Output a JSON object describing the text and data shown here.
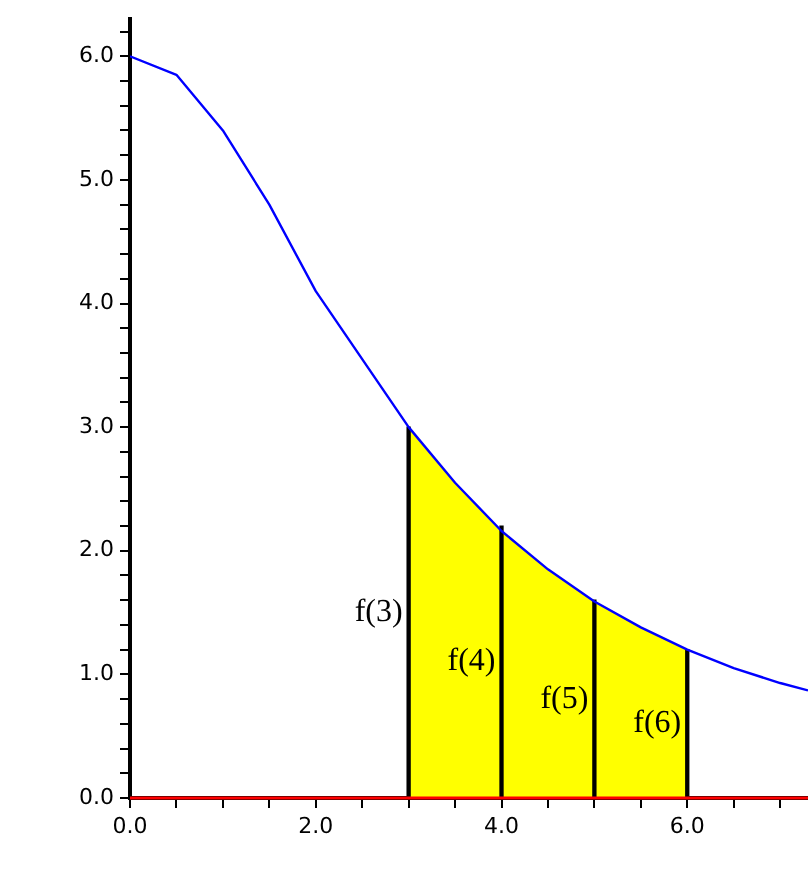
{
  "chart_data": {
    "type": "line",
    "grid": false,
    "legend": false,
    "marker": "none",
    "xlim": [
      0,
      7.3
    ],
    "ylim": [
      0,
      6.3
    ],
    "xticks": [
      {
        "value": 0,
        "label": "0.0"
      },
      {
        "value": 0.5,
        "label": null
      },
      {
        "value": 1,
        "label": null
      },
      {
        "value": 1.5,
        "label": null
      },
      {
        "value": 2,
        "label": "2.0"
      },
      {
        "value": 2.5,
        "label": null
      },
      {
        "value": 3,
        "label": null
      },
      {
        "value": 3.5,
        "label": null
      },
      {
        "value": 4,
        "label": "4.0"
      },
      {
        "value": 4.5,
        "label": null
      },
      {
        "value": 5,
        "label": null
      },
      {
        "value": 5.5,
        "label": null
      },
      {
        "value": 6,
        "label": "6.0"
      },
      {
        "value": 6.5,
        "label": null
      },
      {
        "value": 7,
        "label": null
      }
    ],
    "yticks": [
      {
        "value": 0,
        "label": "0.0"
      },
      {
        "value": 0.2,
        "label": null
      },
      {
        "value": 0.4,
        "label": null
      },
      {
        "value": 0.6,
        "label": null
      },
      {
        "value": 0.8,
        "label": null
      },
      {
        "value": 1,
        "label": "1.0"
      },
      {
        "value": 1.2,
        "label": null
      },
      {
        "value": 1.4,
        "label": null
      },
      {
        "value": 1.6,
        "label": null
      },
      {
        "value": 1.8,
        "label": null
      },
      {
        "value": 2,
        "label": "2.0"
      },
      {
        "value": 2.2,
        "label": null
      },
      {
        "value": 2.4,
        "label": null
      },
      {
        "value": 2.6,
        "label": null
      },
      {
        "value": 2.8,
        "label": null
      },
      {
        "value": 3,
        "label": "3.0"
      },
      {
        "value": 3.2,
        "label": null
      },
      {
        "value": 3.4,
        "label": null
      },
      {
        "value": 3.6,
        "label": null
      },
      {
        "value": 3.8,
        "label": null
      },
      {
        "value": 4,
        "label": "4.0"
      },
      {
        "value": 4.2,
        "label": null
      },
      {
        "value": 4.4,
        "label": null
      },
      {
        "value": 4.6,
        "label": null
      },
      {
        "value": 4.8,
        "label": null
      },
      {
        "value": 5,
        "label": "5.0"
      },
      {
        "value": 5.2,
        "label": null
      },
      {
        "value": 5.4,
        "label": null
      },
      {
        "value": 5.6,
        "label": null
      },
      {
        "value": 5.8,
        "label": null
      },
      {
        "value": 6,
        "label": "6.0"
      },
      {
        "value": 6.2,
        "label": null
      }
    ],
    "series": [
      {
        "type": "area",
        "color": "#ffff00",
        "x": [
          3,
          3.5,
          4,
          4.5,
          5,
          5.5,
          6
        ],
        "values": [
          3.0,
          2.55,
          2.16,
          1.85,
          1.59,
          1.38,
          1.2
        ]
      },
      {
        "type": "bar",
        "color": "#000000",
        "x": [
          3,
          4,
          5,
          6
        ],
        "values": [
          3.0,
          2.2,
          1.6,
          1.2
        ]
      },
      {
        "color": "#0000ff",
        "x": [
          0,
          0.5,
          1,
          1.5,
          2,
          2.5,
          3,
          3.5,
          4,
          4.5,
          5,
          5.5,
          6,
          6.5,
          7,
          7.3
        ],
        "values": [
          6.0,
          5.85,
          5.4,
          4.8,
          4.1,
          3.55,
          3.0,
          2.55,
          2.16,
          1.85,
          1.59,
          1.38,
          1.2,
          1.05,
          0.93,
          0.87
        ]
      }
    ],
    "ref_lines": [
      {
        "axis": "y",
        "value": 0,
        "color": "#ff0000"
      }
    ],
    "annotations": [
      "f(3)",
      "f(4)",
      "f(5)",
      "f(6)"
    ]
  }
}
